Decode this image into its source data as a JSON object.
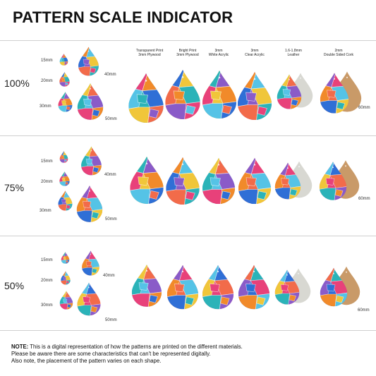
{
  "title": "PATTERN SCALE INDICATOR",
  "sections": [
    {
      "scale": "100%"
    },
    {
      "scale": "75%"
    },
    {
      "scale": "50%"
    }
  ],
  "size_labels": [
    "15mm",
    "20mm",
    "30mm",
    "40mm",
    "50mm",
    "60mm"
  ],
  "materials": [
    {
      "line1": "Transparent Print",
      "line2": "3mm Plywood"
    },
    {
      "line1": "Bright Print",
      "line2": "3mm Plywood"
    },
    {
      "line1": "3mm",
      "line2": "White Acrylic"
    },
    {
      "line1": "3mm",
      "line2": "Clear Acrylic"
    },
    {
      "line1": "1.6-1.8mm",
      "line2": "Leather"
    },
    {
      "line1": "2mm",
      "line2": "Double Sided Cork"
    }
  ],
  "note": {
    "label": "NOTE:",
    "line1": " This is a digital representation of how the patterns are printed on the different materials.",
    "line2": "Please be aware there are some characteristics that can't be represented digitally.",
    "line3": "Also note, the placement of the pattern varies on each shape."
  },
  "colors": {
    "pink": "#e8417a",
    "blue": "#2f6fd6",
    "teal": "#2bb3b8",
    "orange": "#f18a2a",
    "yellow": "#f0c63a",
    "grey": "#d8d8d2",
    "cork": "#c99a68"
  }
}
